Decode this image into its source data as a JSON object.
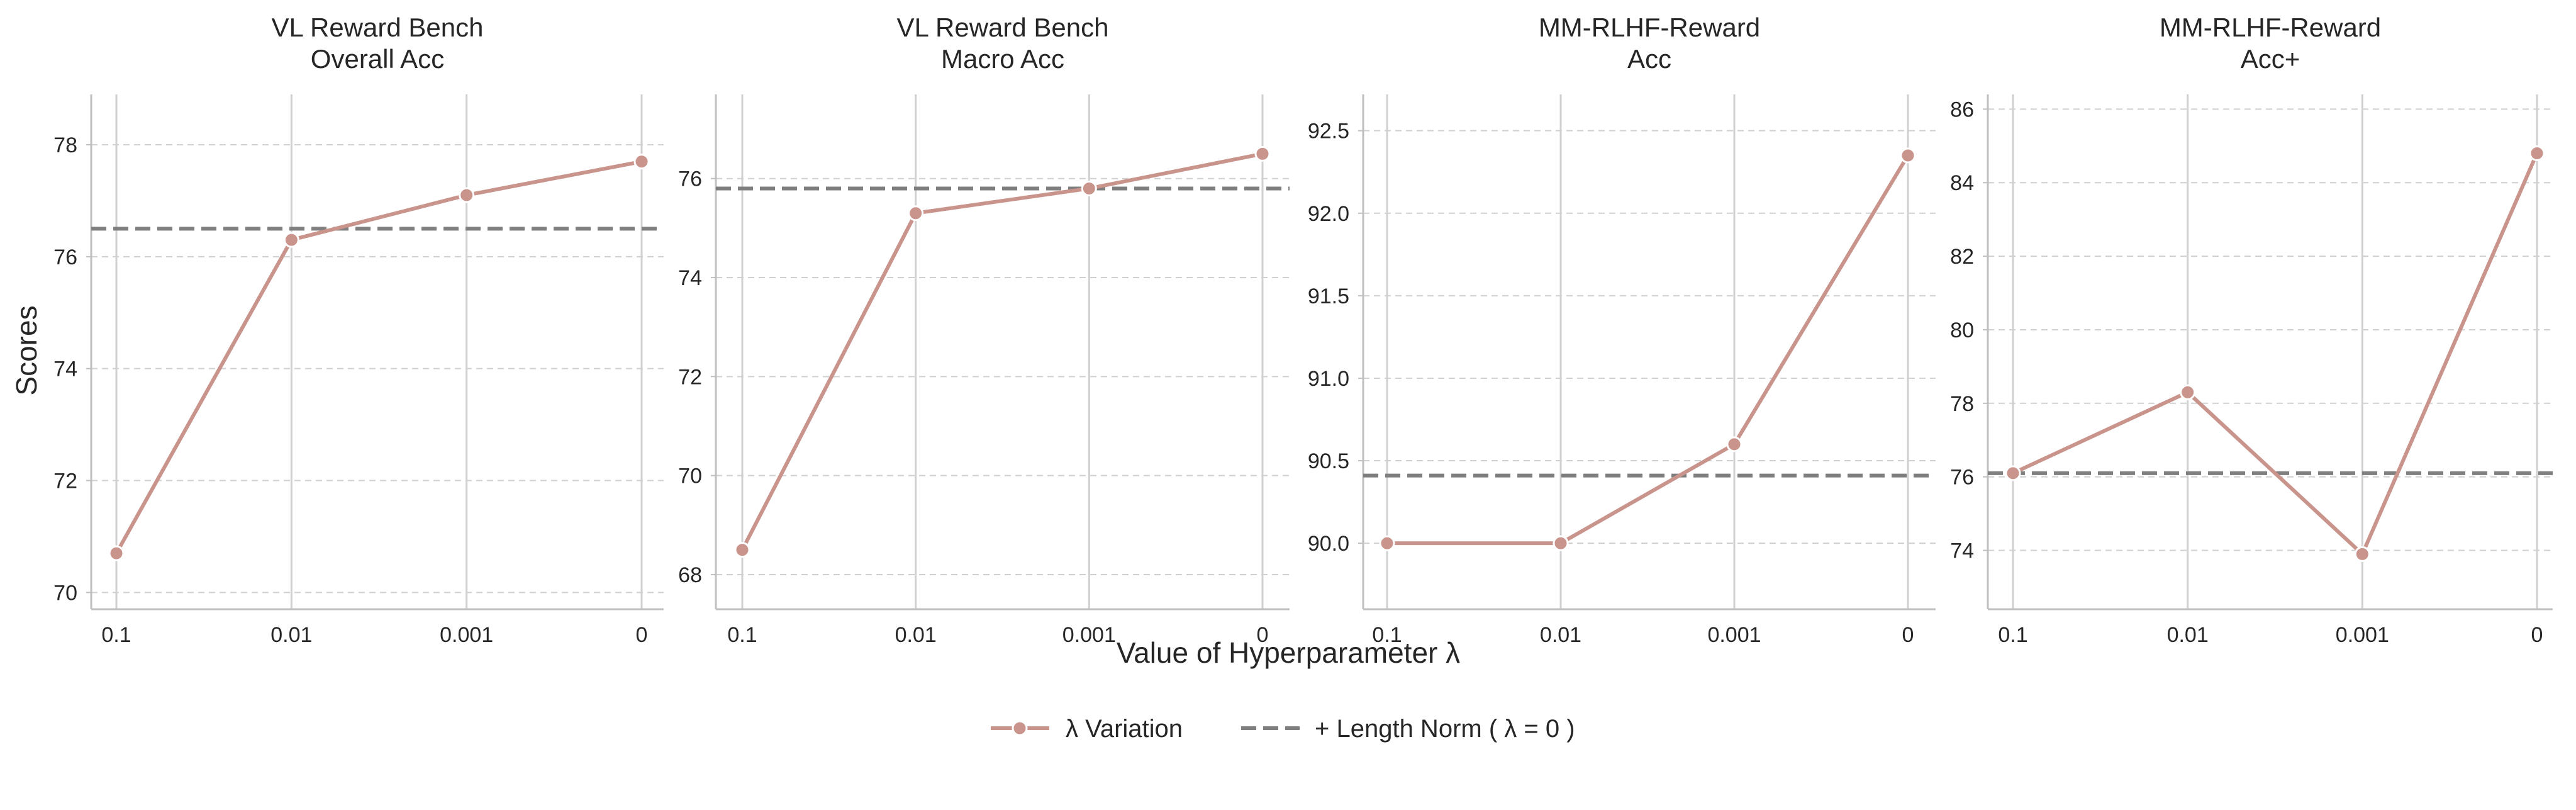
{
  "figure": {
    "ylabel": "Scores",
    "xlabel": "Value of Hyperparameter λ"
  },
  "legend": {
    "items": [
      {
        "label": "λ Variation",
        "kind": "line-marker"
      },
      {
        "label": "+ Length Norm ( λ = 0 )",
        "kind": "dashed"
      }
    ]
  },
  "colors": {
    "series": "#c9948c",
    "baseline": "#7f7f7f",
    "grid": "#d0d0d0",
    "axis": "#bfbfbf"
  },
  "chart_data": [
    {
      "type": "line",
      "title": "VL Reward Bench\nOverall Acc",
      "categories": [
        "0.1",
        "0.01",
        "0.001",
        "0"
      ],
      "series": [
        {
          "name": "λ Variation",
          "values": [
            70.7,
            76.3,
            77.1,
            77.7
          ]
        }
      ],
      "baseline": {
        "name": "+ Length Norm ( λ = 0 )",
        "value": 76.5
      },
      "ylim": [
        69.7,
        78.9
      ],
      "yticks": [
        70,
        72,
        74,
        76,
        78
      ],
      "ytick_labels": [
        "70",
        "72",
        "74",
        "76",
        "78"
      ],
      "grid": true
    },
    {
      "type": "line",
      "title": "VL Reward Bench\nMacro Acc",
      "categories": [
        "0.1",
        "0.01",
        "0.001",
        "0"
      ],
      "series": [
        {
          "name": "λ Variation",
          "values": [
            68.5,
            75.3,
            75.8,
            76.5
          ]
        }
      ],
      "baseline": {
        "name": "+ Length Norm ( λ = 0 )",
        "value": 75.8
      },
      "ylim": [
        67.3,
        77.7
      ],
      "yticks": [
        68,
        70,
        72,
        74,
        76
      ],
      "ytick_labels": [
        "68",
        "70",
        "72",
        "74",
        "76"
      ],
      "grid": true
    },
    {
      "type": "line",
      "title": "MM-RLHF-Reward\nAcc",
      "categories": [
        "0.1",
        "0.01",
        "0.001",
        "0"
      ],
      "series": [
        {
          "name": "λ Variation",
          "values": [
            90.0,
            90.0,
            90.6,
            92.35
          ]
        }
      ],
      "baseline": {
        "name": "+ Length Norm ( λ = 0 )",
        "value": 90.41
      },
      "ylim": [
        89.6,
        92.72
      ],
      "yticks": [
        90.0,
        90.5,
        91.0,
        91.5,
        92.0,
        92.5
      ],
      "ytick_labels": [
        "90.0",
        "90.5",
        "91.0",
        "91.5",
        "92.0",
        "92.5"
      ],
      "grid": true
    },
    {
      "type": "line",
      "title": "MM-RLHF-Reward\nAcc+",
      "categories": [
        "0.1",
        "0.01",
        "0.001",
        "0"
      ],
      "series": [
        {
          "name": "λ Variation",
          "values": [
            76.1,
            78.3,
            73.9,
            84.8
          ]
        }
      ],
      "baseline": {
        "name": "+ Length Norm ( λ = 0 )",
        "value": 76.1
      },
      "ylim": [
        72.4,
        86.4
      ],
      "yticks": [
        74,
        76,
        78,
        80,
        82,
        84,
        86
      ],
      "ytick_labels": [
        "74",
        "76",
        "78",
        "80",
        "82",
        "84",
        "86"
      ],
      "grid": true
    }
  ]
}
